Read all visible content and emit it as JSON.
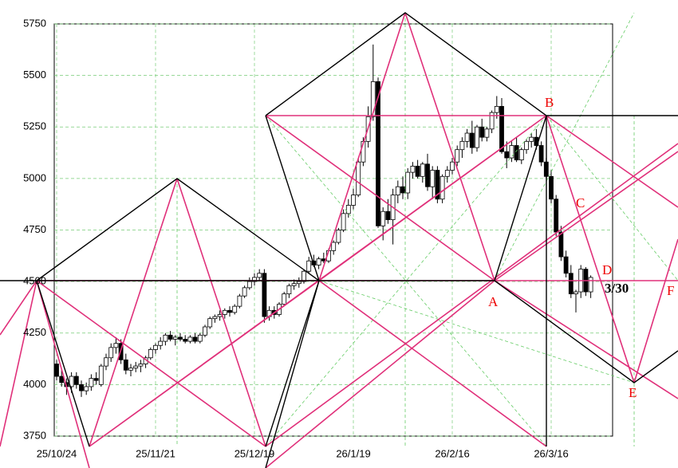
{
  "chart_data": {
    "type": "candlestick",
    "ylim": [
      3750,
      5750
    ],
    "yticks": [
      3750,
      4000,
      4250,
      4500,
      4750,
      5000,
      5250,
      5500,
      5750
    ],
    "categories": [
      "25/10/24",
      null,
      null,
      null,
      null,
      null,
      null,
      null,
      null,
      null,
      null,
      null,
      null,
      null,
      null,
      null,
      null,
      null,
      null,
      null,
      "25/11/21",
      null,
      null,
      null,
      null,
      null,
      null,
      null,
      null,
      null,
      null,
      null,
      null,
      null,
      null,
      null,
      null,
      null,
      null,
      null,
      "25/12/19",
      null,
      null,
      null,
      null,
      null,
      null,
      null,
      null,
      null,
      null,
      null,
      null,
      null,
      null,
      null,
      null,
      null,
      null,
      null,
      "26/1/19",
      null,
      null,
      null,
      null,
      null,
      null,
      null,
      null,
      null,
      null,
      null,
      null,
      null,
      null,
      null,
      null,
      null,
      null,
      null,
      "26/2/16",
      null,
      null,
      null,
      null,
      null,
      null,
      null,
      null,
      null,
      null,
      null,
      null,
      null,
      null,
      null,
      null,
      null,
      null,
      null,
      "26/3/16",
      null,
      null,
      null,
      null,
      null,
      null,
      null,
      null
    ],
    "open": [
      4100,
      4040,
      4010,
      3990,
      4040,
      4000,
      3970,
      3990,
      4030,
      4000,
      4090,
      4130,
      4180,
      4200,
      4120,
      4070,
      4080,
      4090,
      4100,
      4130,
      4170,
      4190,
      4210,
      4240,
      4220,
      4230,
      4220,
      4210,
      4230,
      4210,
      4240,
      4280,
      4320,
      4330,
      4340,
      4360,
      4350,
      4380,
      4430,
      4470,
      4500,
      4520,
      4540,
      4330,
      4360,
      4340,
      4390,
      4440,
      4480,
      4490,
      4500,
      4550,
      4600,
      4580,
      4610,
      4600,
      4650,
      4690,
      4750,
      4830,
      4870,
      4920,
      5080,
      5180,
      5300,
      5470,
      4770,
      4840,
      4800,
      4920,
      4960,
      4930,
      5030,
      5060,
      5010,
      5070,
      4960,
      5040,
      4900,
      5010,
      5040,
      5080,
      5140,
      5180,
      5220,
      5150,
      5250,
      5200,
      5240,
      5320,
      5350,
      5130,
      5100,
      5160,
      5090,
      5140,
      5180,
      5200,
      5160,
      5080,
      5010,
      4900,
      4740,
      4620,
      4540,
      4440,
      4450,
      4560,
      4450
    ],
    "high": [
      4120,
      4070,
      4030,
      4060,
      4060,
      4020,
      4010,
      4050,
      4060,
      4100,
      4150,
      4200,
      4230,
      4220,
      4150,
      4100,
      4110,
      4120,
      4140,
      4180,
      4200,
      4230,
      4250,
      4260,
      4240,
      4250,
      4240,
      4240,
      4250,
      4250,
      4290,
      4330,
      4340,
      4360,
      4370,
      4380,
      4390,
      4440,
      4480,
      4520,
      4540,
      4560,
      4560,
      4380,
      4380,
      4400,
      4450,
      4490,
      4510,
      4520,
      4560,
      4620,
      4630,
      4620,
      4640,
      4660,
      4700,
      4760,
      4850,
      4900,
      4950,
      5100,
      5200,
      5350,
      5650,
      5490,
      4860,
      4900,
      4950,
      4990,
      5010,
      5050,
      5080,
      5090,
      5080,
      5120,
      5060,
      5060,
      5020,
      5060,
      5100,
      5160,
      5200,
      5240,
      5280,
      5260,
      5290,
      5250,
      5330,
      5400,
      5390,
      5180,
      5180,
      5200,
      5150,
      5190,
      5220,
      5240,
      5180,
      5100,
      5040,
      4920,
      4770,
      4650,
      4580,
      4460,
      4580,
      4570,
      4530
    ],
    "low": [
      4020,
      3990,
      3950,
      3960,
      3980,
      3940,
      3950,
      3970,
      4000,
      3990,
      4070,
      4110,
      4150,
      4100,
      4050,
      4040,
      4060,
      4060,
      4080,
      4120,
      4150,
      4170,
      4190,
      4210,
      4190,
      4210,
      4200,
      4200,
      4200,
      4200,
      4230,
      4270,
      4300,
      4310,
      4320,
      4330,
      4340,
      4370,
      4420,
      4460,
      4480,
      4500,
      4300,
      4310,
      4320,
      4330,
      4380,
      4420,
      4460,
      4470,
      4490,
      4540,
      4570,
      4560,
      4590,
      4590,
      4630,
      4680,
      4740,
      4810,
      4850,
      4910,
      5060,
      5150,
      5280,
      4760,
      4700,
      4780,
      4680,
      4880,
      4900,
      4900,
      5000,
      5000,
      4980,
      4940,
      4900,
      4880,
      4880,
      4980,
      5020,
      5060,
      5100,
      5150,
      5120,
      5130,
      5180,
      5180,
      5220,
      5290,
      5120,
      5050,
      5080,
      5080,
      5070,
      5120,
      5150,
      5140,
      5060,
      5000,
      4880,
      4720,
      4600,
      4520,
      4420,
      4350,
      4420,
      4430,
      4420
    ],
    "close": [
      4040,
      4010,
      3990,
      4040,
      4000,
      3970,
      3990,
      4030,
      4020,
      4090,
      4130,
      4180,
      4200,
      4120,
      4070,
      4080,
      4090,
      4100,
      4130,
      4170,
      4190,
      4210,
      4240,
      4220,
      4230,
      4220,
      4210,
      4230,
      4210,
      4240,
      4280,
      4320,
      4330,
      4340,
      4360,
      4350,
      4380,
      4430,
      4470,
      4500,
      4520,
      4540,
      4330,
      4360,
      4340,
      4390,
      4440,
      4480,
      4490,
      4500,
      4550,
      4600,
      4580,
      4610,
      4600,
      4650,
      4690,
      4750,
      4830,
      4870,
      4920,
      5080,
      5180,
      5300,
      5470,
      4770,
      4840,
      4800,
      4920,
      4960,
      4930,
      5030,
      5060,
      5010,
      5070,
      4960,
      5040,
      4900,
      5010,
      5040,
      5080,
      5140,
      5180,
      5220,
      5150,
      5250,
      5200,
      5240,
      5320,
      5350,
      5130,
      5100,
      5160,
      5090,
      5140,
      5180,
      5200,
      5160,
      5080,
      5010,
      4900,
      4740,
      4620,
      4540,
      4440,
      4450,
      4560,
      4450,
      4520
    ],
    "annotations": [
      "A",
      "B",
      "C",
      "D",
      "E",
      "F",
      "3/30"
    ]
  }
}
